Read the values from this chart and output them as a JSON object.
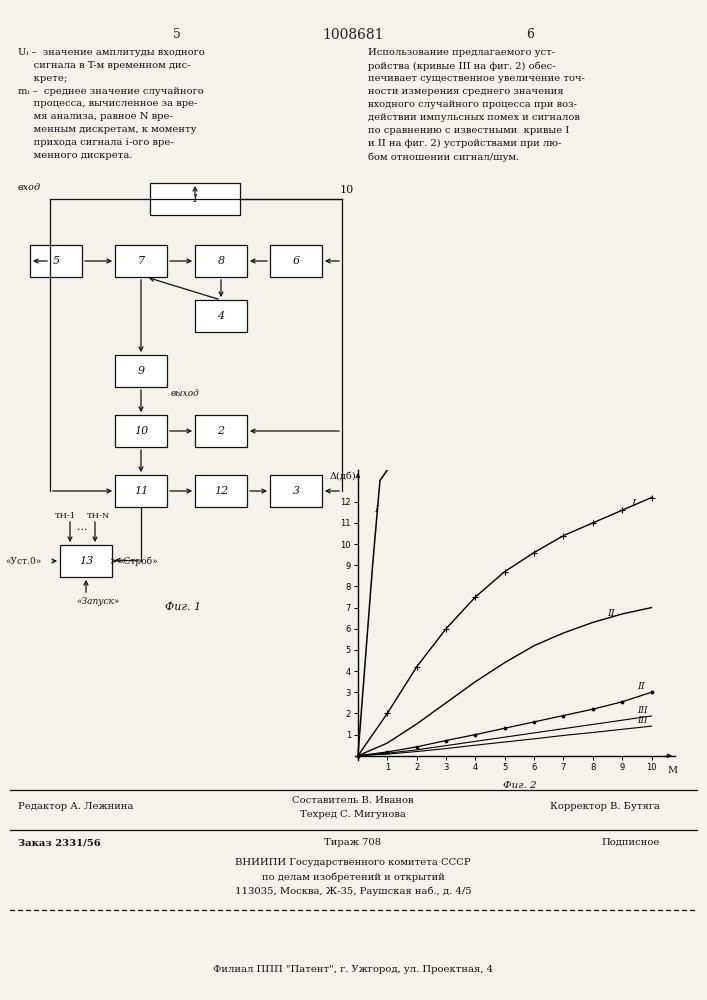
{
  "title": "1008681",
  "page_left": "5",
  "page_right": "6",
  "bg_color": "#f5f2ec",
  "text_color": "#111111",
  "graph_ylabel": "Δ(дб)",
  "graph_xlabel": "M",
  "graph_caption": "Фиг. 2",
  "graph_xticks": [
    1,
    2,
    3,
    4,
    5,
    6,
    7,
    8,
    9,
    10
  ],
  "graph_yticks": [
    1,
    2,
    3,
    4,
    5,
    6,
    7,
    8,
    9,
    10,
    11,
    12
  ],
  "curve_I_x": [
    0,
    1,
    2,
    3,
    4,
    5,
    6,
    7,
    8,
    9,
    10
  ],
  "curve_I_y": [
    0,
    2.0,
    4.2,
    6.0,
    7.5,
    8.7,
    9.6,
    10.4,
    11.0,
    11.6,
    12.2
  ],
  "curve_II_x": [
    0,
    1,
    2,
    3,
    4,
    5,
    6,
    7,
    8,
    9,
    10
  ],
  "curve_II_y": [
    0,
    0.6,
    1.5,
    2.5,
    3.5,
    4.4,
    5.2,
    5.8,
    6.3,
    6.7,
    7.0
  ],
  "curve_II_lower_x": [
    0,
    1,
    2,
    3,
    4,
    5,
    6,
    7,
    8,
    9,
    10
  ],
  "curve_II_lower_y": [
    0,
    0.18,
    0.42,
    0.72,
    1.0,
    1.3,
    1.6,
    1.9,
    2.2,
    2.55,
    3.0
  ],
  "curve_III_lower_x": [
    0,
    1,
    2,
    3,
    4,
    5,
    6,
    7,
    8,
    9,
    10
  ],
  "curve_III_lower_y": [
    0,
    0.08,
    0.2,
    0.34,
    0.5,
    0.65,
    0.8,
    0.96,
    1.1,
    1.25,
    1.4
  ],
  "curve_III_upper_x": [
    0,
    1,
    2,
    3,
    4,
    5,
    6,
    7,
    8,
    9,
    10
  ],
  "curve_III_upper_y": [
    0,
    0.12,
    0.28,
    0.48,
    0.68,
    0.88,
    1.08,
    1.28,
    1.48,
    1.68,
    1.88
  ],
  "footer_editor": "Редактор А. Лежнина",
  "footer_composer": "Составитель В. Иванов",
  "footer_tech": "Техред С. Мигунова",
  "footer_corrector": "Корректор В. Бутяга",
  "footer_order": "Заказ 2331/56",
  "footer_tirazh": "Тираж 708",
  "footer_podpis": "Подписное",
  "footer_vniip": "ВНИИПИ Государственного комитета СССР",
  "footer_dela": "по делам изобретений и открытий",
  "footer_addr": "113035, Москва, Ж-35, Раушская наб., д. 4/5",
  "footer_filial": "Филиал ППП \"Патент\", г. Ужгород, ул. Проектная, 4"
}
